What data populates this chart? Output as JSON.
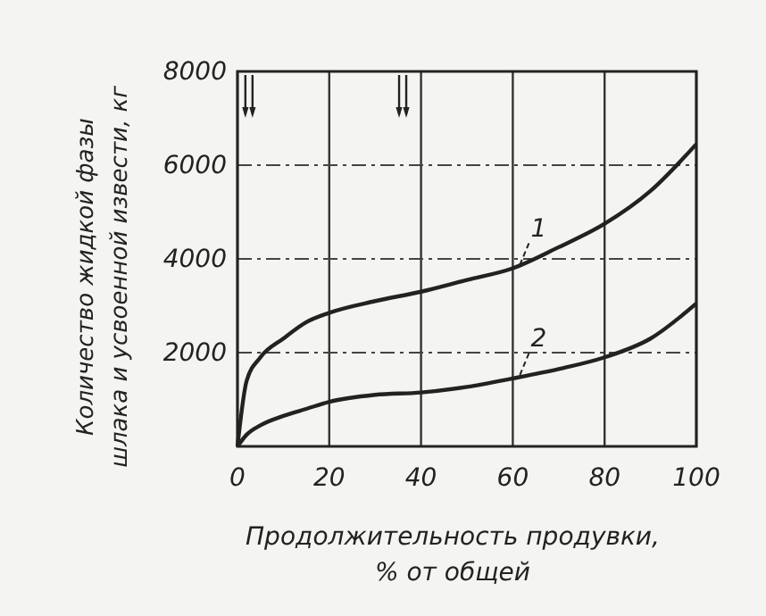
{
  "chart_data": {
    "type": "line",
    "xlabel": "Продолжительность продувки,\n% от общей",
    "ylabel": "Количество жидкой фазы\nшлака и усвоенной извести, кг",
    "x": [
      0,
      2,
      5,
      10,
      15,
      20,
      30,
      40,
      50,
      60,
      70,
      80,
      90,
      100
    ],
    "series": [
      {
        "name": "1",
        "color": "#222222",
        "values": [
          0,
          1400,
          1900,
          2300,
          2650,
          2850,
          3100,
          3300,
          3550,
          3800,
          4250,
          4750,
          5450,
          6450
        ]
      },
      {
        "name": "2",
        "color": "#222222",
        "values": [
          0,
          250,
          450,
          650,
          800,
          950,
          1100,
          1150,
          1270,
          1450,
          1650,
          1900,
          2300,
          3050
        ]
      }
    ],
    "xlim": [
      0,
      100
    ],
    "ylim": [
      0,
      8000
    ],
    "xticks": [
      0,
      20,
      40,
      60,
      80,
      100
    ],
    "yticks": [
      2000,
      4000,
      6000,
      8000
    ],
    "grid": true,
    "marker": "none",
    "line_style": "solid"
  }
}
